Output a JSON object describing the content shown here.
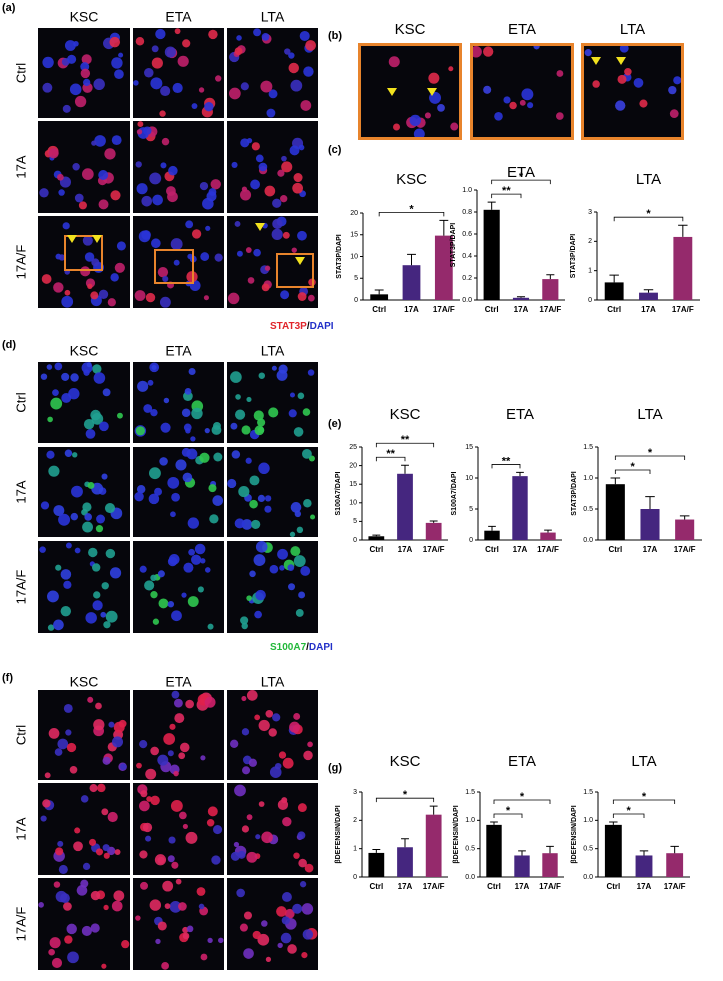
{
  "panels": {
    "a": {
      "label": "(a)",
      "columns": [
        "KSC",
        "ETA",
        "LTA"
      ],
      "rows": [
        "Ctrl",
        "17A",
        "17A/F"
      ],
      "stain": "STAT3P",
      "separator": "/",
      "counterstain": "DAPI"
    },
    "b": {
      "label": "(b)",
      "columns": [
        "KSC",
        "ETA",
        "LTA"
      ]
    },
    "c": {
      "label": "(c)"
    },
    "d": {
      "label": "(d)",
      "columns": [
        "KSC",
        "ETA",
        "LTA"
      ],
      "rows": [
        "Ctrl",
        "17A",
        "17A/F"
      ],
      "stain": "S100A7",
      "separator": "/",
      "counterstain": "DAPI"
    },
    "e": {
      "label": "(e)"
    },
    "f": {
      "label": "(f)",
      "columns": [
        "KSC",
        "ETA",
        "LTA"
      ],
      "rows": [
        "Ctrl",
        "17A",
        "17A/F"
      ]
    },
    "g": {
      "label": "(g)"
    }
  },
  "chart_data": [
    {
      "type": "bar",
      "title": "KSC",
      "y_label": "STAT3P/DAPI",
      "categories": [
        "Ctrl",
        "17A",
        "17A/F"
      ],
      "values": [
        1.3,
        8,
        14.8
      ],
      "errors": [
        1,
        2.5,
        3.5
      ],
      "colors": [
        "#000000",
        "#45267f",
        "#952a6c"
      ],
      "ylim": [
        0,
        20
      ],
      "yticks": [
        0,
        5,
        10,
        15,
        20
      ],
      "significance": [
        {
          "label": "*",
          "pair": [
            "Ctrl",
            "17A/F"
          ]
        }
      ]
    },
    {
      "type": "bar",
      "title": "ETA",
      "y_label": "STAT3P/DAPI",
      "categories": [
        "Ctrl",
        "17A",
        "17A/F"
      ],
      "values": [
        0.82,
        0.02,
        0.19
      ],
      "errors": [
        0.07,
        0.01,
        0.04
      ],
      "colors": [
        "#000000",
        "#45267f",
        "#952a6c"
      ],
      "ylim": [
        0,
        1
      ],
      "yticks": [
        {
          "value": 0,
          "label": "0.0"
        },
        0.2,
        0.4,
        0.6,
        0.8,
        {
          "value": 1,
          "label": "1.0"
        }
      ],
      "significance": [
        {
          "label": "**",
          "pair": [
            "Ctrl",
            "17A"
          ]
        },
        {
          "label": "*",
          "pair": [
            "Ctrl",
            "17A/F"
          ]
        }
      ]
    },
    {
      "type": "bar",
      "title": "LTA",
      "y_label": "STAT3P/DAPI",
      "categories": [
        "Ctrl",
        "17A",
        "17A/F"
      ],
      "values": [
        0.6,
        0.25,
        2.15
      ],
      "errors": [
        0.25,
        0.1,
        0.4
      ],
      "colors": [
        "#000000",
        "#45267f",
        "#952a6c"
      ],
      "ylim": [
        0,
        3
      ],
      "yticks": [
        0,
        1,
        2,
        3
      ],
      "significance": [
        {
          "label": "*",
          "pair": [
            "Ctrl",
            "17A/F"
          ]
        }
      ]
    },
    {
      "type": "bar",
      "title": "KSC",
      "y_label": "S100A7/DAPI",
      "categories": [
        "Ctrl",
        "17A",
        "17A/F"
      ],
      "values": [
        1,
        17.8,
        4.6
      ],
      "errors": [
        0.3,
        2.3,
        0.5
      ],
      "colors": [
        "#000000",
        "#45267f",
        "#952a6c"
      ],
      "ylim": [
        0,
        25
      ],
      "yticks": [
        0,
        5,
        10,
        15,
        20,
        25
      ],
      "significance": [
        {
          "label": "**",
          "pair": [
            "Ctrl",
            "17A"
          ]
        },
        {
          "label": "**",
          "pair": [
            "Ctrl",
            "17A/F"
          ]
        }
      ]
    },
    {
      "type": "bar",
      "title": "ETA",
      "y_label": "S100A7/DAPI",
      "categories": [
        "Ctrl",
        "17A",
        "17A/F"
      ],
      "values": [
        1.5,
        10.3,
        1.2
      ],
      "errors": [
        0.7,
        0.6,
        0.4
      ],
      "colors": [
        "#000000",
        "#45267f",
        "#952a6c"
      ],
      "ylim": [
        0,
        15
      ],
      "yticks": [
        0,
        5,
        10,
        15
      ],
      "significance": [
        {
          "label": "**",
          "pair": [
            "Ctrl",
            "17A"
          ]
        }
      ]
    },
    {
      "type": "bar",
      "title": "LTA",
      "y_label": "STAT3P/DAPI",
      "categories": [
        "Ctrl",
        "17A",
        "17A/F"
      ],
      "values": [
        0.9,
        0.5,
        0.33
      ],
      "errors": [
        0.1,
        0.2,
        0.06
      ],
      "colors": [
        "#000000",
        "#45267f",
        "#952a6c"
      ],
      "ylim": [
        0,
        1.5
      ],
      "yticks": [
        {
          "value": 0,
          "label": "0.0"
        },
        0.5,
        {
          "value": 1,
          "label": "1.0"
        },
        1.5
      ],
      "significance": [
        {
          "label": "*",
          "pair": [
            "Ctrl",
            "17A"
          ]
        },
        {
          "label": "*",
          "pair": [
            "Ctrl",
            "17A/F"
          ]
        }
      ]
    },
    {
      "type": "bar",
      "title": "KSC",
      "y_label": "βDEFENSIN/DAPI",
      "categories": [
        "Ctrl",
        "17A",
        "17A/F"
      ],
      "values": [
        0.85,
        1.05,
        2.2
      ],
      "errors": [
        0.12,
        0.3,
        0.3
      ],
      "colors": [
        "#000000",
        "#45267f",
        "#952a6c"
      ],
      "ylim": [
        0,
        3
      ],
      "yticks": [
        0,
        1,
        2,
        3
      ],
      "significance": [
        {
          "label": "*",
          "pair": [
            "Ctrl",
            "17A/F"
          ]
        }
      ]
    },
    {
      "type": "bar",
      "title": "ETA",
      "y_label": "βDEFENSIN/DAPI",
      "categories": [
        "Ctrl",
        "17A",
        "17A/F"
      ],
      "values": [
        0.92,
        0.38,
        0.42
      ],
      "errors": [
        0.05,
        0.08,
        0.12
      ],
      "colors": [
        "#000000",
        "#45267f",
        "#952a6c"
      ],
      "ylim": [
        0,
        1.5
      ],
      "yticks": [
        {
          "value": 0,
          "label": "0.0"
        },
        0.5,
        {
          "value": 1,
          "label": "1.0"
        },
        1.5
      ],
      "significance": [
        {
          "label": "*",
          "pair": [
            "Ctrl",
            "17A"
          ]
        },
        {
          "label": "*",
          "pair": [
            "Ctrl",
            "17A/F"
          ]
        }
      ]
    },
    {
      "type": "bar",
      "title": "LTA",
      "y_label": "βDEFENSIN/DAPI",
      "categories": [
        "Ctrl",
        "17A",
        "17A/F"
      ],
      "values": [
        0.92,
        0.38,
        0.42
      ],
      "errors": [
        0.05,
        0.08,
        0.12
      ],
      "colors": [
        "#000000",
        "#45267f",
        "#952a6c"
      ],
      "ylim": [
        0,
        1.5
      ],
      "yticks": [
        {
          "value": 0,
          "label": "0.0"
        },
        0.5,
        {
          "value": 1,
          "label": "1.0"
        },
        1.5
      ],
      "significance": [
        {
          "label": "*",
          "pair": [
            "Ctrl",
            "17A"
          ]
        },
        {
          "label": "*",
          "pair": [
            "Ctrl",
            "17A/F"
          ]
        }
      ]
    }
  ]
}
